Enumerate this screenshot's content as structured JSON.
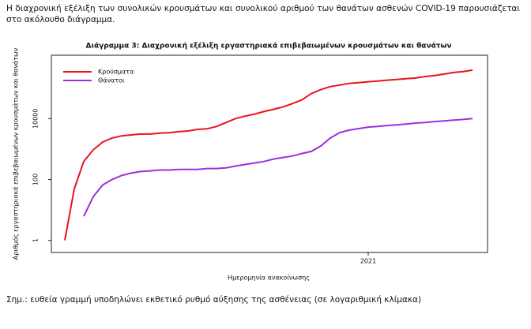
{
  "intro": "Η διαχρονική εξέλιξη των συνολικών κρουσμάτων και συνολικού αριθμού των θανάτων ασθενών COVID-19 παρουσιάζεται στο ακόλουθο διάγραμμα.",
  "note": "Σημ.: ευθεία γραμμή υποδηλώνει εκθετικό ρυθμό αύξησης της ασθένειας (σε λογαριθμική κλίμακα)",
  "chart_data": {
    "type": "line",
    "title": "Διάγραμμα 3: Διαχρονική εξέλιξη εργαστηριακά επιβεβαιωμένων κρουσμάτων και θανάτων",
    "x_label": "Ημερομηνία ανακοίνωσης",
    "y_label": "Αριθμός εργαστηριακά επιβεβαιωμένων κρουσμάτων και θανάτων",
    "log_scale_y": true,
    "legend_position": "top-left",
    "categories": [
      null,
      null,
      null,
      null,
      null,
      null,
      null,
      null,
      null,
      null,
      null,
      null,
      null,
      null,
      null,
      null,
      null,
      null,
      null,
      null,
      null,
      null,
      null,
      null,
      null,
      null,
      null,
      null,
      null,
      null,
      null,
      null,
      "2021",
      null,
      null,
      null,
      null,
      null,
      null,
      null,
      null,
      null,
      null,
      null
    ],
    "ylim": [
      0.4,
      1200000
    ],
    "yticks": [
      1,
      100,
      10000
    ],
    "series": [
      {
        "name": "Κρούσματα",
        "color": "#e8141c",
        "values": [
          1,
          49,
          390,
          940,
          1700,
          2300,
          2700,
          2900,
          3100,
          3100,
          3300,
          3400,
          3700,
          3900,
          4400,
          4600,
          5500,
          7400,
          10000,
          12000,
          14000,
          17000,
          20000,
          24000,
          31000,
          41000,
          66000,
          89000,
          112000,
          126000,
          142000,
          151000,
          162000,
          170000,
          182000,
          191000,
          204000,
          214000,
          240000,
          257000,
          288000,
          324000,
          347000,
          389000
        ]
      },
      {
        "name": "Θάνατοι",
        "color": "#9b30e0",
        "values": [
          null,
          null,
          6.2,
          27,
          66,
          100,
          135,
          162,
          182,
          191,
          204,
          204,
          214,
          214,
          214,
          229,
          229,
          240,
          275,
          309,
          347,
          389,
          468,
          525,
          589,
          708,
          832,
          1260,
          2290,
          3470,
          4170,
          4680,
          5250,
          5500,
          5890,
          6170,
          6610,
          7080,
          7410,
          7940,
          8320,
          8910,
          9330,
          10000
        ]
      }
    ]
  }
}
